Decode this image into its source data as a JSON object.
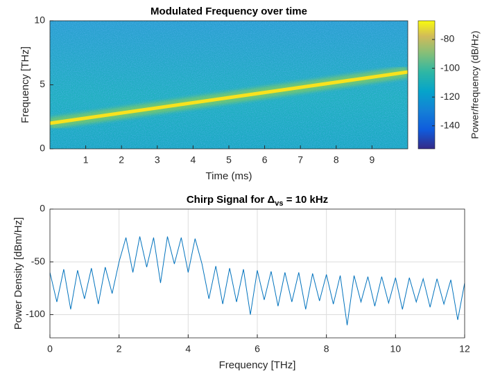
{
  "chart_data": [
    {
      "type": "spectrogram",
      "title": "Modulated Frequency over time",
      "xlabel": "Time (ms)",
      "ylabel": "Frequency [THz]",
      "x": [
        0,
        10
      ],
      "values": [
        2,
        6
      ],
      "color": "#f8e21e",
      "xlim": [
        0,
        10
      ],
      "ylim": [
        0,
        10
      ],
      "xticks": [
        1,
        2,
        3,
        4,
        5,
        6,
        7,
        8,
        9
      ],
      "yticks": [
        0,
        5,
        10
      ],
      "grid": false,
      "colorbar": {
        "label": "Power/frequency (dB/Hz)",
        "lim": [
          -156,
          -67
        ],
        "ticks": [
          -140,
          -120,
          -100,
          -80
        ]
      }
    },
    {
      "type": "line",
      "title": "Chirp Signal for Δ",
      "title_subscript": "vs",
      "title_suffix": " = 10 kHz",
      "xlabel": "Frequency [THz]",
      "ylabel": "Power Density [dBm/Hz]",
      "x": [
        0,
        0.2,
        0.4,
        0.6,
        0.8,
        1.0,
        1.2,
        1.4,
        1.6,
        1.8,
        2.0,
        2.2,
        2.4,
        2.6,
        2.8,
        3.0,
        3.2,
        3.4,
        3.6,
        3.8,
        4.0,
        4.2,
        4.4,
        4.6,
        4.8,
        5.0,
        5.2,
        5.4,
        5.6,
        5.8,
        6.0,
        6.2,
        6.4,
        6.6,
        6.8,
        7.0,
        7.2,
        7.4,
        7.6,
        7.8,
        8.0,
        8.2,
        8.4,
        8.6,
        8.8,
        9.0,
        9.2,
        9.4,
        9.6,
        9.8,
        10.0,
        10.2,
        10.4,
        10.6,
        10.8,
        11.0,
        11.2,
        11.4,
        11.6,
        11.8,
        12.0
      ],
      "values": [
        -60,
        -88,
        -57,
        -95,
        -58,
        -85,
        -56,
        -90,
        -55,
        -80,
        -50,
        -27,
        -60,
        -26,
        -55,
        -27,
        -70,
        -26,
        -52,
        -27,
        -60,
        -28,
        -52,
        -85,
        -54,
        -90,
        -56,
        -88,
        -57,
        -100,
        -58,
        -86,
        -59,
        -92,
        -60,
        -88,
        -60,
        -95,
        -61,
        -87,
        -62,
        -90,
        -63,
        -110,
        -63,
        -88,
        -64,
        -92,
        -64,
        -89,
        -65,
        -95,
        -65,
        -88,
        -66,
        -93,
        -66,
        -90,
        -67,
        -105,
        -70
      ],
      "color": "#0072bd",
      "xlim": [
        0,
        12
      ],
      "ylim": [
        -122,
        0
      ],
      "xticks": [
        0,
        2,
        4,
        6,
        8,
        10,
        12
      ],
      "yticks": [
        -100,
        -50,
        0
      ],
      "grid": true
    }
  ]
}
